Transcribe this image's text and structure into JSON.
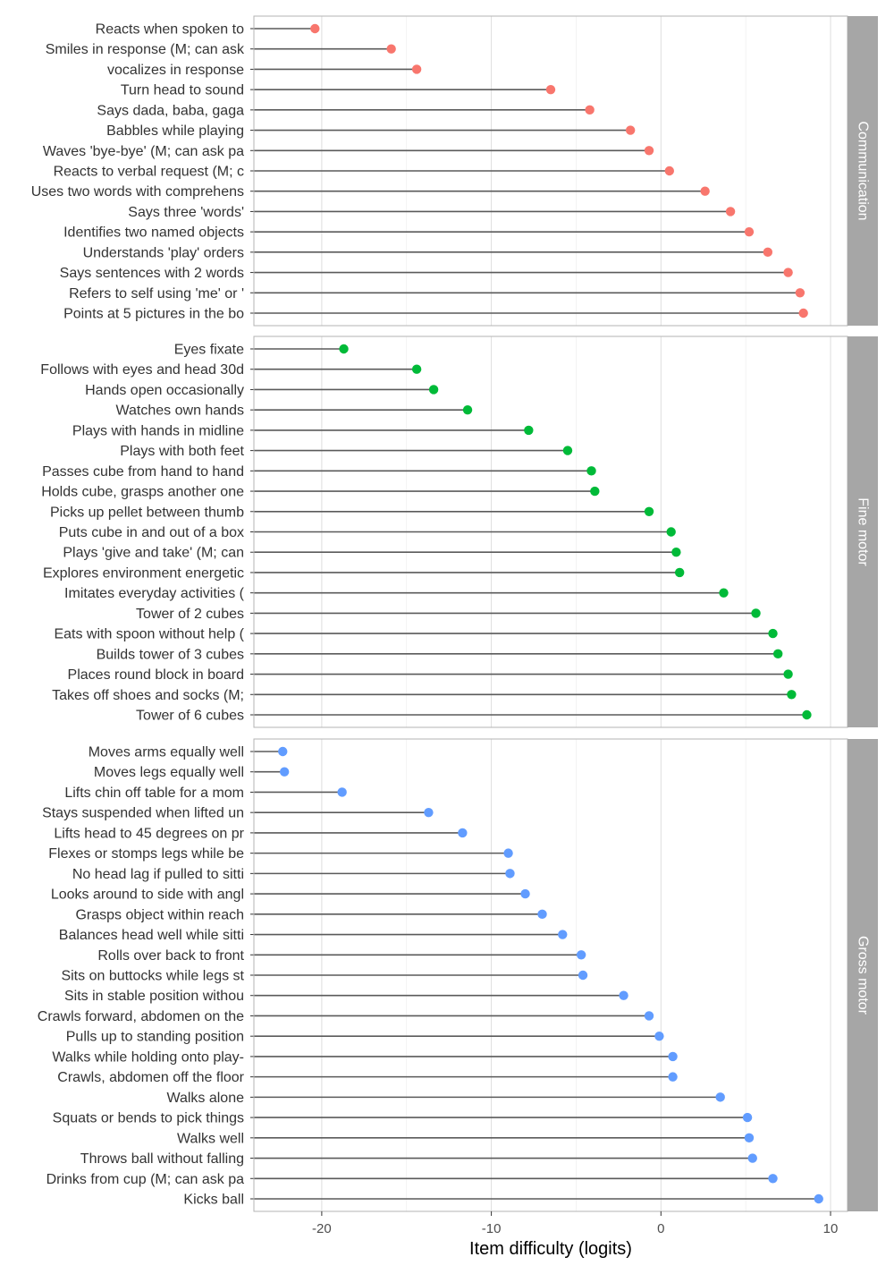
{
  "chart_data": {
    "type": "lollipop",
    "xlabel": "Item difficulty (logits)",
    "xlim": [
      -24,
      11
    ],
    "xticks": [
      -20,
      -10,
      0,
      10
    ],
    "xtick_labels": [
      "-20",
      "-10",
      "0",
      "10"
    ],
    "baseline": -24,
    "grid": true,
    "colors": {
      "Communication": "#F8766D",
      "Fine motor": "#00BA38",
      "Gross motor": "#619CFF"
    },
    "panels": [
      {
        "name": "Communication",
        "items": [
          {
            "label": "Reacts when spoken to",
            "value": -20.4
          },
          {
            "label": "Smiles in response (M; can ask",
            "value": -15.9
          },
          {
            "label": "vocalizes in response",
            "value": -14.4
          },
          {
            "label": "Turn head to sound",
            "value": -6.5
          },
          {
            "label": "Says dada, baba, gaga",
            "value": -4.2
          },
          {
            "label": "Babbles while playing",
            "value": -1.8
          },
          {
            "label": "Waves 'bye-bye' (M; can ask pa",
            "value": -0.7
          },
          {
            "label": "Reacts to verbal request (M; c",
            "value": 0.5
          },
          {
            "label": "Uses two words with comprehens",
            "value": 2.6
          },
          {
            "label": "Says three 'words'",
            "value": 4.1
          },
          {
            "label": "Identifies two named objects",
            "value": 5.2
          },
          {
            "label": "Understands 'play' orders",
            "value": 6.3
          },
          {
            "label": "Says sentences with 2 words",
            "value": 7.5
          },
          {
            "label": "Refers to self using 'me' or '",
            "value": 8.2
          },
          {
            "label": "Points at 5 pictures in the bo",
            "value": 8.4
          }
        ]
      },
      {
        "name": "Fine motor",
        "items": [
          {
            "label": "Eyes fixate",
            "value": -18.7
          },
          {
            "label": "Follows with eyes and head 30d",
            "value": -14.4
          },
          {
            "label": "Hands open occasionally",
            "value": -13.4
          },
          {
            "label": "Watches own hands",
            "value": -11.4
          },
          {
            "label": "Plays with hands in midline",
            "value": -7.8
          },
          {
            "label": "Plays with both feet",
            "value": -5.5
          },
          {
            "label": "Passes cube from hand to hand",
            "value": -4.1
          },
          {
            "label": "Holds cube, grasps another one",
            "value": -3.9
          },
          {
            "label": "Picks up pellet between thumb",
            "value": -0.7
          },
          {
            "label": "Puts cube in and out of a box",
            "value": 0.6
          },
          {
            "label": "Plays 'give and take' (M; can",
            "value": 0.9
          },
          {
            "label": "Explores environment energetic",
            "value": 1.1
          },
          {
            "label": "Imitates everyday activities (",
            "value": 3.7
          },
          {
            "label": "Tower of 2 cubes",
            "value": 5.6
          },
          {
            "label": "Eats with spoon without help (",
            "value": 6.6
          },
          {
            "label": "Builds tower of 3 cubes",
            "value": 6.9
          },
          {
            "label": "Places round block in board",
            "value": 7.5
          },
          {
            "label": "Takes off shoes and socks (M;",
            "value": 7.7
          },
          {
            "label": "Tower of 6 cubes",
            "value": 8.6
          }
        ]
      },
      {
        "name": "Gross motor",
        "items": [
          {
            "label": "Moves arms equally well",
            "value": -22.3
          },
          {
            "label": "Moves legs equally well",
            "value": -22.2
          },
          {
            "label": "Lifts chin off table for a mom",
            "value": -18.8
          },
          {
            "label": "Stays suspended when lifted un",
            "value": -13.7
          },
          {
            "label": "Lifts head to 45 degrees on pr",
            "value": -11.7
          },
          {
            "label": "Flexes or stomps legs while be",
            "value": -9.0
          },
          {
            "label": "No head lag if pulled to sitti",
            "value": -8.9
          },
          {
            "label": "Looks around to side with angl",
            "value": -8.0
          },
          {
            "label": "Grasps object within reach",
            "value": -7.0
          },
          {
            "label": "Balances head well while sitti",
            "value": -5.8
          },
          {
            "label": "Rolls over back to front",
            "value": -4.7
          },
          {
            "label": "Sits on buttocks while legs st",
            "value": -4.6
          },
          {
            "label": "Sits in stable position withou",
            "value": -2.2
          },
          {
            "label": "Crawls forward, abdomen on the",
            "value": -0.7
          },
          {
            "label": "Pulls up to standing position",
            "value": -0.1
          },
          {
            "label": "Walks while holding onto play-",
            "value": 0.7
          },
          {
            "label": "Crawls, abdomen off the floor",
            "value": 0.7
          },
          {
            "label": "Walks alone",
            "value": 3.5
          },
          {
            "label": "Squats or bends to pick things",
            "value": 5.1
          },
          {
            "label": "Walks well",
            "value": 5.2
          },
          {
            "label": "Throws ball without falling",
            "value": 5.4
          },
          {
            "label": "Drinks from cup (M; can ask pa",
            "value": 6.6
          },
          {
            "label": "Kicks ball",
            "value": 9.3
          }
        ]
      }
    ]
  }
}
